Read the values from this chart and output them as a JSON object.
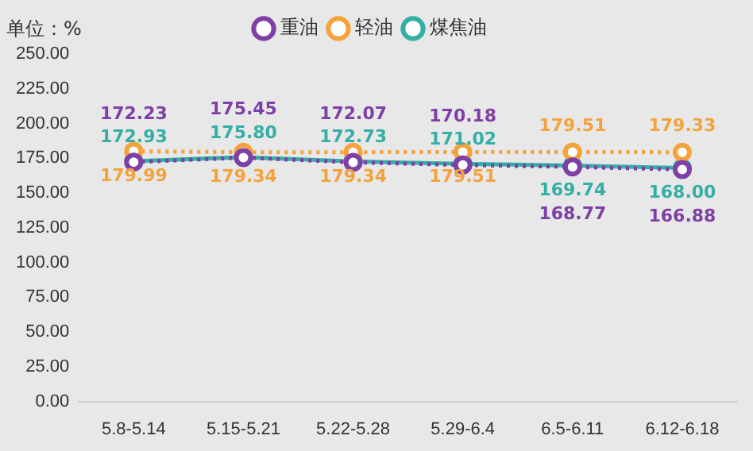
{
  "chart_data": {
    "type": "line",
    "ylabel": "单位：%",
    "categories": [
      "5.8-5.14",
      "5.15-5.21",
      "5.22-5.28",
      "5.29-6.4",
      "6.5-6.11",
      "6.12-6.18"
    ],
    "series": [
      {
        "name": "重油",
        "color": "#7e3fa6",
        "line_style": "dotted",
        "values": [
          172.23,
          175.45,
          172.07,
          170.18,
          168.77,
          166.88
        ],
        "value_labels": [
          "172.23",
          "175.45",
          "172.07",
          "170.18",
          "168.77",
          "166.88"
        ]
      },
      {
        "name": "轻油",
        "color": "#f4a23c",
        "line_style": "dotted",
        "values": [
          179.99,
          179.34,
          179.34,
          179.51,
          179.51,
          179.33
        ],
        "value_labels": [
          "179.99",
          "179.34",
          "179.34",
          "179.51",
          "179.51",
          "179.33"
        ]
      },
      {
        "name": "煤焦油",
        "color": "#35aea6",
        "line_style": "solid",
        "values": [
          172.93,
          175.8,
          172.73,
          171.02,
          169.74,
          168
        ],
        "value_labels": [
          "172.93",
          "175.80",
          "172.73",
          "171.02",
          "169.74",
          "168.00"
        ]
      }
    ],
    "ylim": [
      0,
      250
    ],
    "yticks": [
      {
        "value": 0,
        "label": "0.00"
      },
      {
        "value": 25,
        "label": "25.00"
      },
      {
        "value": 50,
        "label": "50.00"
      },
      {
        "value": 75,
        "label": "75.00"
      },
      {
        "value": 100,
        "label": "100.00"
      },
      {
        "value": 125,
        "label": "125.00"
      },
      {
        "value": 150,
        "label": "150.00"
      },
      {
        "value": 175,
        "label": "175.00"
      },
      {
        "value": 200,
        "label": "200.00"
      },
      {
        "value": 225,
        "label": "225.00"
      },
      {
        "value": 250,
        "label": "250.00"
      }
    ],
    "grid": false,
    "legend": "top",
    "marker": "circle"
  }
}
